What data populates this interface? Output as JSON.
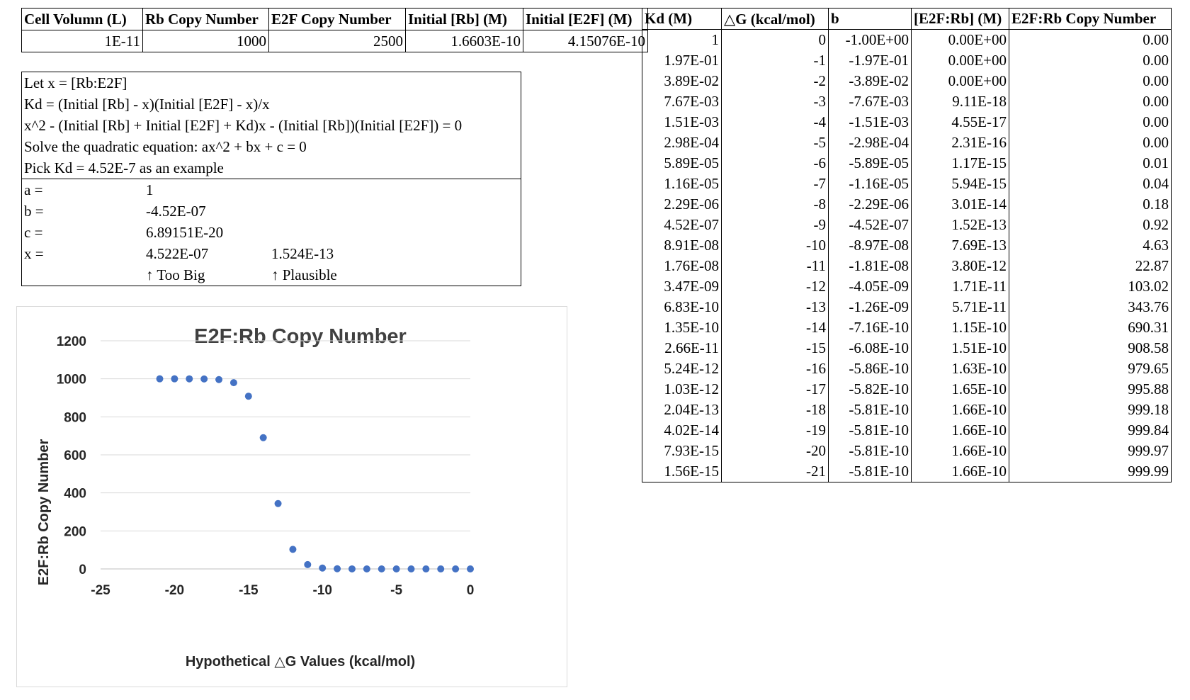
{
  "params": {
    "headers": [
      "Cell Volumn (L)",
      "Rb Copy Number",
      "E2F Copy Number",
      "Initial [Rb] (M)",
      "Initial [E2F] (M)"
    ],
    "values": [
      "1E-11",
      "1000",
      "2500",
      "1.6603E-10",
      "4.15076E-10"
    ]
  },
  "note": {
    "lines": [
      "Let x = [Rb:E2F]",
      "Kd = (Initial [Rb] - x)(Initial [E2F] - x)/x",
      "x^2 - (Initial [Rb] + Initial [E2F] + Kd)x - (Initial [Rb])(Initial [E2F]) = 0",
      "Solve the quadratic equation: ax^2 + bx + c = 0",
      "Pick Kd = 4.52E-7 as an example"
    ],
    "a_label": "a =",
    "a_value": "1",
    "b_label": "b =",
    "b_value": "-4.52E-07",
    "c_label": "c =",
    "c_value": "6.89151E-20",
    "x_label": "x =",
    "x_value1": "4.522E-07",
    "x_value2": "1.524E-13",
    "comment1": "↑ Too Big",
    "comment2": "↑ Plausible"
  },
  "results": {
    "headers": [
      "Kd (M)",
      "△G (kcal/mol)",
      "b",
      "[E2F:Rb] (M)",
      "E2F:Rb Copy Number"
    ],
    "rows": [
      [
        "1",
        "0",
        "-1.00E+00",
        "0.00E+00",
        "0.00"
      ],
      [
        "1.97E-01",
        "-1",
        "-1.97E-01",
        "0.00E+00",
        "0.00"
      ],
      [
        "3.89E-02",
        "-2",
        "-3.89E-02",
        "0.00E+00",
        "0.00"
      ],
      [
        "7.67E-03",
        "-3",
        "-7.67E-03",
        "9.11E-18",
        "0.00"
      ],
      [
        "1.51E-03",
        "-4",
        "-1.51E-03",
        "4.55E-17",
        "0.00"
      ],
      [
        "2.98E-04",
        "-5",
        "-2.98E-04",
        "2.31E-16",
        "0.00"
      ],
      [
        "5.89E-05",
        "-6",
        "-5.89E-05",
        "1.17E-15",
        "0.01"
      ],
      [
        "1.16E-05",
        "-7",
        "-1.16E-05",
        "5.94E-15",
        "0.04"
      ],
      [
        "2.29E-06",
        "-8",
        "-2.29E-06",
        "3.01E-14",
        "0.18"
      ],
      [
        "4.52E-07",
        "-9",
        "-4.52E-07",
        "1.52E-13",
        "0.92"
      ],
      [
        "8.91E-08",
        "-10",
        "-8.97E-08",
        "7.69E-13",
        "4.63"
      ],
      [
        "1.76E-08",
        "-11",
        "-1.81E-08",
        "3.80E-12",
        "22.87"
      ],
      [
        "3.47E-09",
        "-12",
        "-4.05E-09",
        "1.71E-11",
        "103.02"
      ],
      [
        "6.83E-10",
        "-13",
        "-1.26E-09",
        "5.71E-11",
        "343.76"
      ],
      [
        "1.35E-10",
        "-14",
        "-7.16E-10",
        "1.15E-10",
        "690.31"
      ],
      [
        "2.66E-11",
        "-15",
        "-6.08E-10",
        "1.51E-10",
        "908.58"
      ],
      [
        "5.24E-12",
        "-16",
        "-5.86E-10",
        "1.63E-10",
        "979.65"
      ],
      [
        "1.03E-12",
        "-17",
        "-5.82E-10",
        "1.65E-10",
        "995.88"
      ],
      [
        "2.04E-13",
        "-18",
        "-5.81E-10",
        "1.66E-10",
        "999.18"
      ],
      [
        "4.02E-14",
        "-19",
        "-5.81E-10",
        "1.66E-10",
        "999.84"
      ],
      [
        "7.93E-15",
        "-20",
        "-5.81E-10",
        "1.66E-10",
        "999.97"
      ],
      [
        "1.56E-15",
        "-21",
        "-5.81E-10",
        "1.66E-10",
        "999.99"
      ]
    ]
  },
  "chart_data": {
    "type": "scatter",
    "title": "E2F:Rb Copy Number",
    "xlabel": "Hypothetical △G Values (kcal/mol)",
    "ylabel": "E2F:Rb Copy Number",
    "xlim": [
      -25,
      0
    ],
    "ylim": [
      0,
      1200
    ],
    "xticks": [
      "-25",
      "-20",
      "-15",
      "-10",
      "-5",
      "0"
    ],
    "yticks": [
      "0",
      "200",
      "400",
      "600",
      "800",
      "1000",
      "1200"
    ],
    "grid": true,
    "marker_color": "#4472C4",
    "x": [
      0,
      -1,
      -2,
      -3,
      -4,
      -5,
      -6,
      -7,
      -8,
      -9,
      -10,
      -11,
      -12,
      -13,
      -14,
      -15,
      -16,
      -17,
      -18,
      -19,
      -20,
      -21
    ],
    "y": [
      0,
      0,
      0,
      0,
      0,
      0,
      0.01,
      0.04,
      0.18,
      0.92,
      4.63,
      22.87,
      103.02,
      343.76,
      690.31,
      908.58,
      979.65,
      995.88,
      999.18,
      999.84,
      999.97,
      999.99
    ]
  }
}
